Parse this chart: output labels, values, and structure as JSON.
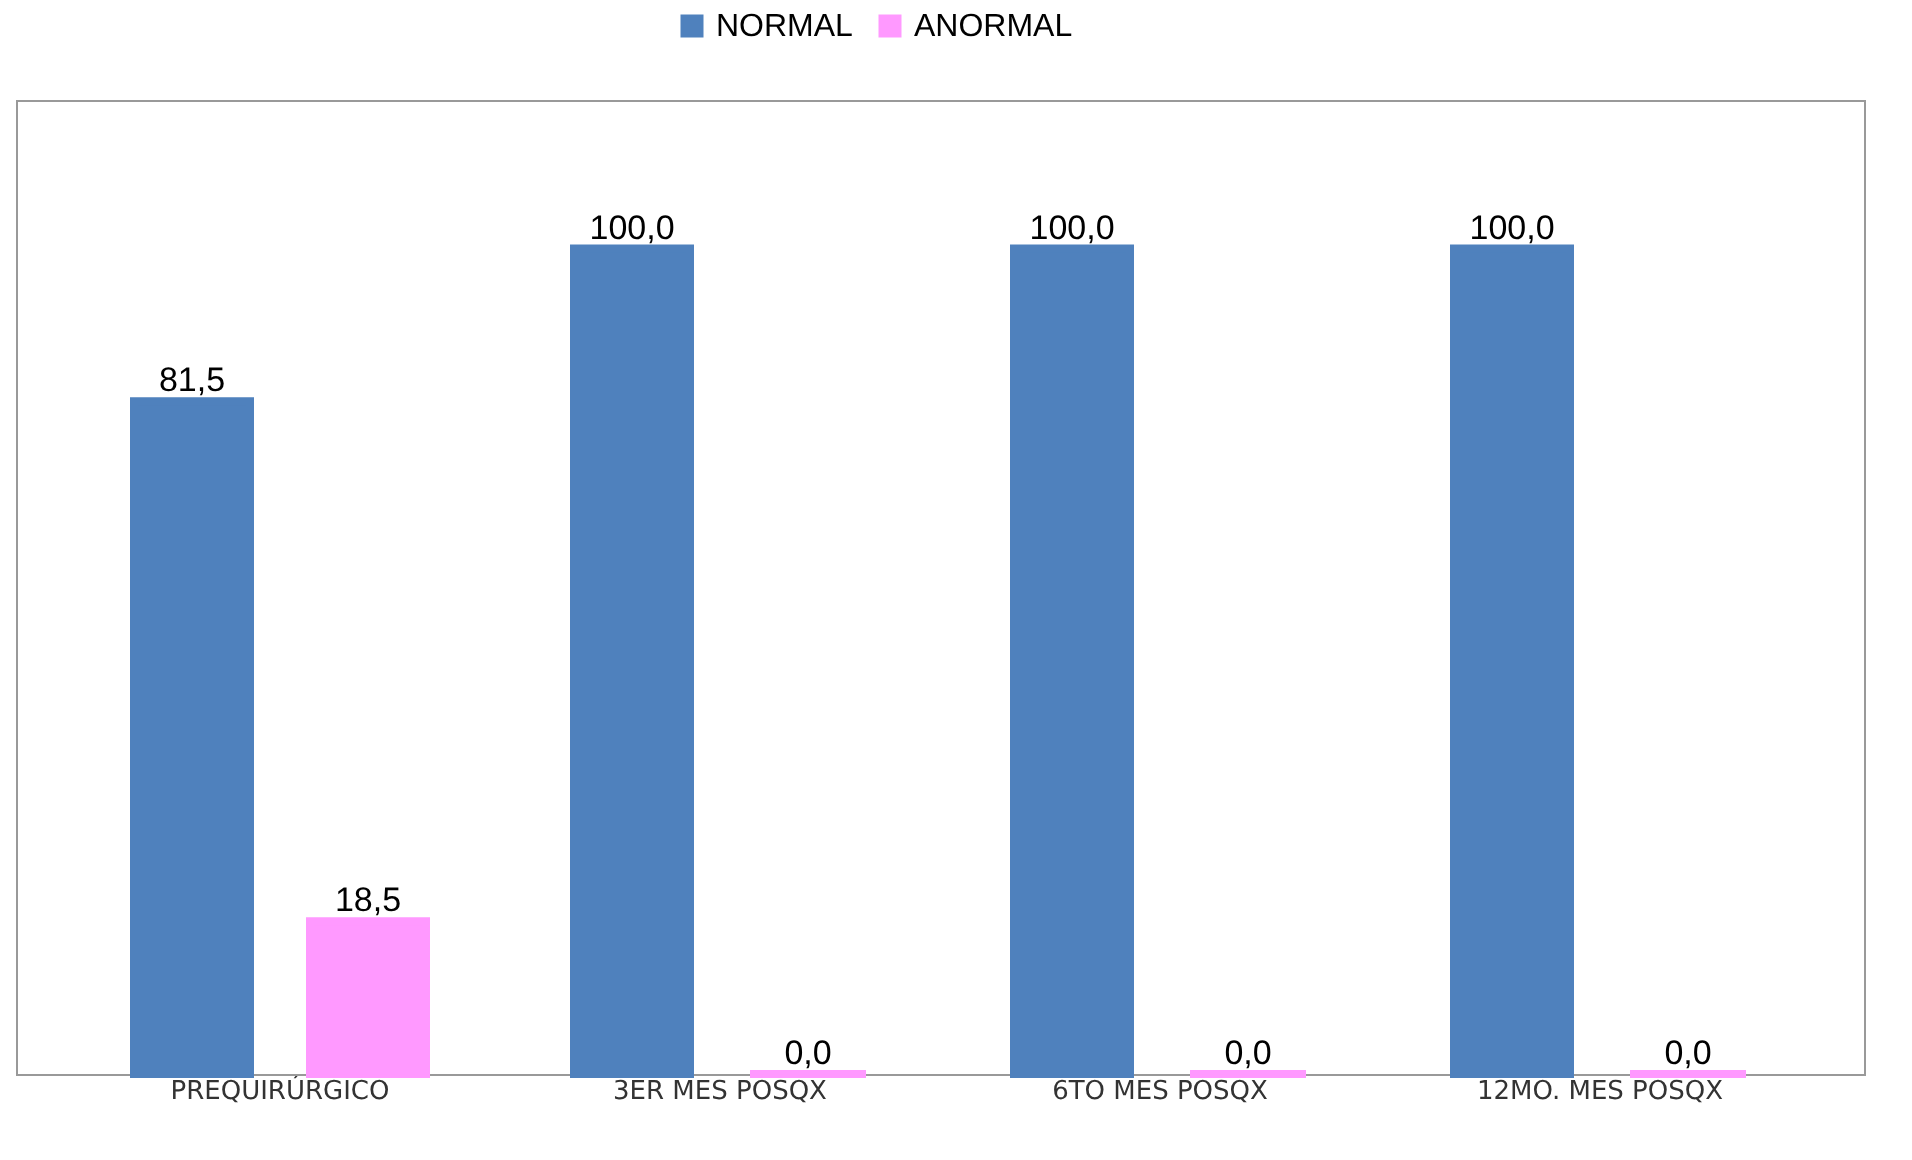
{
  "chart_data": {
    "type": "bar",
    "categories": [
      "PREQUIRÚRGICO",
      "3ER MES POSQX",
      "6TO MES POSQX",
      "12MO. MES POSQX"
    ],
    "series": [
      {
        "name": "NORMAL",
        "color": "#4f81bd",
        "values": [
          81.5,
          100.0,
          100.0,
          100.0
        ],
        "value_labels": [
          "81,5",
          "100,0",
          "100,0",
          "100,0"
        ]
      },
      {
        "name": "ANORMAL",
        "color": "#ff99ff",
        "values": [
          18.5,
          0.0,
          0.0,
          0.0
        ],
        "value_labels": [
          "18,5",
          "0,0",
          "0,0",
          "0,0"
        ]
      }
    ],
    "legend": "top",
    "grid": false
  }
}
